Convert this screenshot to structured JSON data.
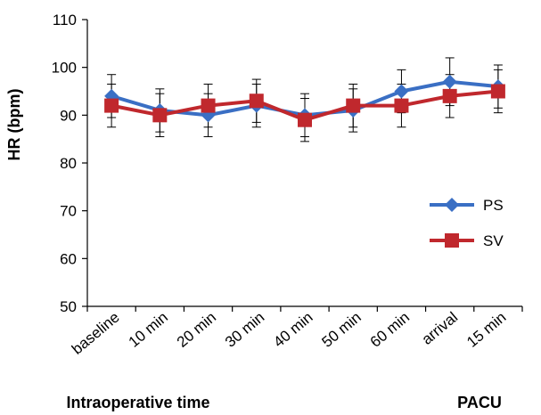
{
  "chart_data": {
    "type": "line",
    "title": "",
    "ylabel": "HR (bpm)",
    "xlabel": "",
    "categories": [
      "baseline",
      "10 min",
      "20 min",
      "30 min",
      "40 min",
      "50 min",
      "60 min",
      "arrival",
      "15 min"
    ],
    "group_labels": [
      "Intraoperative time",
      "PACU"
    ],
    "ylim": [
      50,
      110
    ],
    "yticks": [
      50,
      60,
      70,
      80,
      90,
      100,
      110
    ],
    "grid": false,
    "legend_position": "right",
    "series": [
      {
        "name": "PS",
        "color": "#3a6fc4",
        "marker": "diamond",
        "values": [
          94,
          91,
          90,
          92,
          90,
          91,
          95,
          97,
          96
        ],
        "errors": [
          4.5,
          4.5,
          4.5,
          4.5,
          4.5,
          4.5,
          4.5,
          5,
          4.5
        ]
      },
      {
        "name": "SV",
        "color": "#c0282d",
        "marker": "square",
        "values": [
          92,
          90,
          92,
          93,
          89,
          92,
          92,
          94,
          95
        ],
        "errors": [
          4.5,
          4.5,
          4.5,
          4.5,
          4.5,
          4.5,
          4.5,
          4.5,
          4.5
        ]
      }
    ]
  }
}
